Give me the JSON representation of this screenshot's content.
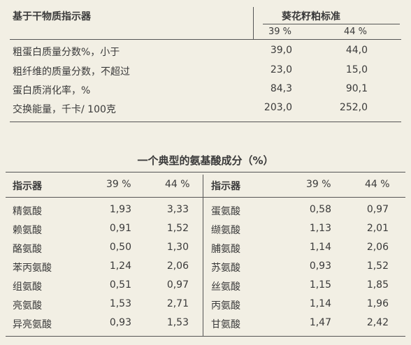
{
  "top_table": {
    "left_header": "基于干物质指示器",
    "right_header": "葵花籽粕标准",
    "col1": "39 %",
    "col2": "44 %",
    "rows": [
      {
        "label": "粗蛋白质量分数%，小于",
        "v1": "39,0",
        "v2": "44,0"
      },
      {
        "label": "粗纤维的质量分数，不超过",
        "v1": "23,0",
        "v2": "15,0"
      },
      {
        "label": "蛋白质消化率，%",
        "v1": "84,3",
        "v2": "90,1"
      },
      {
        "label": "交换能量，千卡/ 100克",
        "v1": "203,0",
        "v2": "252,0"
      }
    ]
  },
  "amino_table": {
    "title": "一个典型的氨基酸成分（%）",
    "header_label": "指示器",
    "col1": "39 %",
    "col2": "44 %",
    "left_rows": [
      {
        "name": "精氨酸",
        "v1": "1,93",
        "v2": "3,33"
      },
      {
        "name": "赖氨酸",
        "v1": "0,91",
        "v2": "1,52"
      },
      {
        "name": "酪氨酸",
        "v1": "0,50",
        "v2": "1,30"
      },
      {
        "name": "苯丙氨酸",
        "v1": "1,24",
        "v2": "2,06"
      },
      {
        "name": "组氨酸",
        "v1": "0,51",
        "v2": "0,97"
      },
      {
        "name": "亮氨酸",
        "v1": "1,53",
        "v2": "2,71"
      },
      {
        "name": "异亮氨酸",
        "v1": "0,93",
        "v2": "1,53"
      }
    ],
    "right_rows": [
      {
        "name": "蛋氨酸",
        "v1": "0,58",
        "v2": "0,97"
      },
      {
        "name": "缬氨酸",
        "v1": "1,13",
        "v2": "2,01"
      },
      {
        "name": "脯氨酸",
        "v1": "1,14",
        "v2": "2,06"
      },
      {
        "name": "苏氨酸",
        "v1": "0,93",
        "v2": "1,52"
      },
      {
        "name": "丝氨酸",
        "v1": "1,15",
        "v2": "1,85"
      },
      {
        "name": "丙氨酸",
        "v1": "1,14",
        "v2": "1,96"
      },
      {
        "name": "甘氨酸",
        "v1": "1,47",
        "v2": "2,42"
      }
    ]
  }
}
